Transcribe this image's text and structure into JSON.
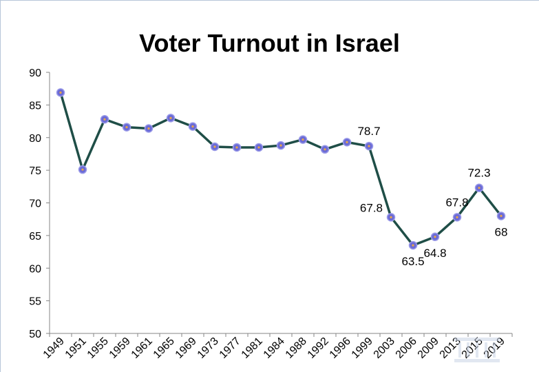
{
  "chart_data": {
    "type": "line",
    "title": "Voter Turnout in Israel",
    "xlabel": "",
    "ylabel": "",
    "ylim": [
      50,
      90
    ],
    "yticks": [
      50,
      55,
      60,
      65,
      70,
      75,
      80,
      85,
      90
    ],
    "grid": false,
    "legend": "none",
    "categories": [
      "1949",
      "1951",
      "1955",
      "1959",
      "1961",
      "1965",
      "1969",
      "1973",
      "1977",
      "1981",
      "1984",
      "1988",
      "1992",
      "1996",
      "1999",
      "2003",
      "2006",
      "2009",
      "2013",
      "2015",
      "2019"
    ],
    "series": [
      {
        "values": [
          86.9,
          75.1,
          82.8,
          81.6,
          81.4,
          83.0,
          81.7,
          78.6,
          78.5,
          78.5,
          78.8,
          79.7,
          78.2,
          79.3,
          78.7,
          67.8,
          63.5,
          64.8,
          67.8,
          72.3,
          68
        ]
      }
    ],
    "data_labels": [
      {
        "index": 14,
        "text": "78.7",
        "pos": "above"
      },
      {
        "index": 15,
        "text": "67.8",
        "pos": "left"
      },
      {
        "index": 16,
        "text": "63.5",
        "pos": "below"
      },
      {
        "index": 17,
        "text": "64.8",
        "pos": "below"
      },
      {
        "index": 18,
        "text": "67.8",
        "pos": "above"
      },
      {
        "index": 19,
        "text": "72.3",
        "pos": "above"
      },
      {
        "index": 20,
        "text": "68",
        "pos": "below"
      }
    ],
    "colors": {
      "line": "#1f4e47",
      "marker_fill": "#6b6bd6",
      "marker_stroke": "#9a9ae8",
      "marker_center": "#e8a64a",
      "axis": "#868686"
    }
  }
}
